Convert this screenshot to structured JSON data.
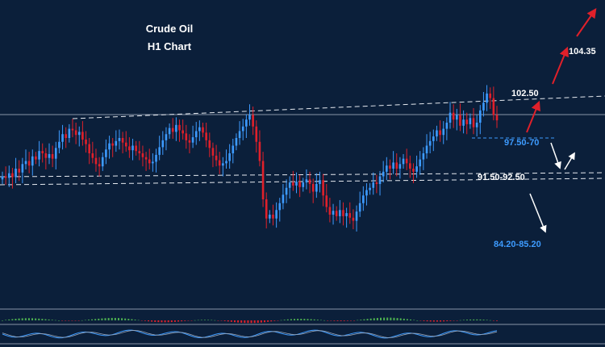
{
  "header": {
    "title": "Crude Oil",
    "subtitle": "H1 Chart"
  },
  "levels": {
    "l104": "104.35",
    "l102": "102.50",
    "l97": "97.50-70",
    "l91": "91.50-92.50",
    "l84": "84.20-85.20"
  },
  "colors": {
    "background": "#0b1f3a",
    "bull": "#3d9bff",
    "bear": "#e0202a",
    "white_line": "#ffffff",
    "red_arrow": "#e0202a",
    "white_arrow": "#ffffff"
  },
  "chart_data": {
    "type": "candlestick",
    "title": "Crude Oil",
    "subtitle": "H1 Chart",
    "y_range": [
      76,
      116
    ],
    "closes": [
      93.0,
      92.8,
      93.4,
      92.9,
      94.0,
      93.5,
      94.6,
      95.0,
      94.4,
      95.6,
      95.2,
      96.3,
      96.0,
      95.4,
      95.9,
      95.3,
      96.7,
      97.5,
      98.5,
      98.0,
      99.2,
      99.0,
      98.4,
      98.8,
      97.8,
      97.2,
      96.0,
      95.4,
      94.6,
      94.3,
      95.5,
      96.5,
      97.3,
      97.0,
      97.6,
      98.0,
      97.4,
      96.9,
      96.4,
      97.0,
      96.3,
      96.0,
      95.5,
      95.2,
      94.7,
      94.9,
      95.8,
      96.8,
      97.7,
      98.5,
      99.3,
      98.8,
      99.7,
      99.0,
      98.6,
      97.7,
      97.4,
      98.1,
      98.9,
      99.4,
      98.7,
      97.7,
      96.7,
      95.7,
      95.1,
      94.4,
      94.7,
      95.0,
      96.0,
      97.0,
      98.0,
      98.9,
      99.5,
      100.4,
      101.0,
      99.5,
      97.5,
      95.0,
      90.0,
      87.5,
      88.0,
      87.5,
      88.6,
      89.5,
      90.6,
      91.5,
      92.2,
      91.8,
      92.3,
      91.6,
      92.2,
      92.6,
      92.0,
      91.0,
      92.0,
      92.5,
      90.5,
      89.0,
      88.0,
      88.5,
      87.8,
      88.6,
      87.8,
      88.2,
      87.6,
      87.2,
      88.4,
      89.5,
      90.5,
      91.2,
      91.5,
      92.2,
      92.0,
      93.0,
      93.6,
      94.4,
      94.0,
      94.8,
      94.0,
      94.6,
      95.3,
      94.7,
      94.0,
      93.6,
      94.3,
      95.2,
      96.0,
      97.0,
      97.6,
      98.2,
      99.0,
      98.4,
      99.2,
      100.0,
      101.3,
      100.4,
      101.0,
      99.6,
      100.4,
      99.8,
      100.6,
      99.4,
      100.0,
      101.6,
      102.6,
      103.8,
      103.2,
      101.0,
      100.3
    ]
  },
  "sub_panel": {
    "type": "oscillator"
  }
}
